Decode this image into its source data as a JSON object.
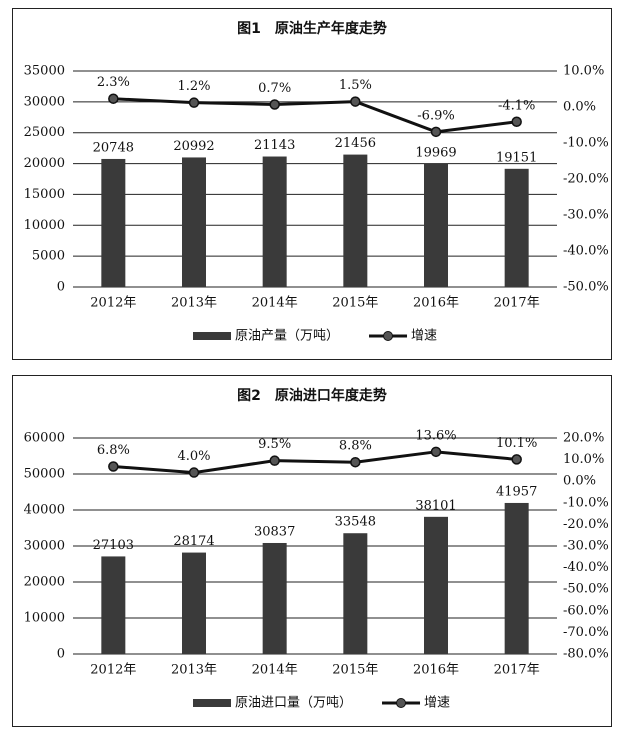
{
  "chart_data": [
    {
      "type": "bar",
      "title": "图1　原油生产年度走势",
      "categories": [
        "2012年",
        "2013年",
        "2014年",
        "2015年",
        "2016年",
        "2017年"
      ],
      "series": [
        {
          "name": "原油产量（万吨）",
          "type": "bar",
          "color": "#3a3a3a",
          "values": [
            20748,
            20992,
            21143,
            21456,
            19969,
            19151
          ]
        },
        {
          "name": "增速",
          "type": "line",
          "axis": "y2",
          "color": "#111111",
          "values": [
            2.3,
            1.2,
            0.7,
            1.5,
            -6.9,
            -4.1
          ],
          "value_labels": [
            "2.3%",
            "1.2%",
            "0.7%",
            "1.5%",
            "-6.9%",
            "-4.1%"
          ]
        }
      ],
      "ylim": [
        0,
        35000
      ],
      "yticks": [
        0,
        5000,
        10000,
        15000,
        20000,
        25000,
        30000,
        35000
      ],
      "y2lim": [
        -50,
        10
      ],
      "y2ticks": [
        {
          "value": -50,
          "label": "-50.0%"
        },
        {
          "value": -40,
          "label": "-40.0%"
        },
        {
          "value": -30,
          "label": "-30.0%"
        },
        {
          "value": -20,
          "label": "-20.0%"
        },
        {
          "value": -10,
          "label": "-10.0%"
        },
        {
          "value": 0,
          "label": "0.0%"
        },
        {
          "value": 10,
          "label": "10.0%"
        }
      ],
      "grid": true,
      "legend": "bottom"
    },
    {
      "type": "bar",
      "title": "图2　原油进口年度走势",
      "categories": [
        "2012年",
        "2013年",
        "2014年",
        "2015年",
        "2016年",
        "2017年"
      ],
      "series": [
        {
          "name": "原油进口量（万吨）",
          "type": "bar",
          "color": "#3a3a3a",
          "values": [
            27103,
            28174,
            30837,
            33548,
            38101,
            41957
          ]
        },
        {
          "name": "增速",
          "type": "line",
          "axis": "y2",
          "color": "#111111",
          "values": [
            6.8,
            4.0,
            9.5,
            8.8,
            13.6,
            10.1
          ],
          "value_labels": [
            "6.8%",
            "4.0%",
            "9.5%",
            "8.8%",
            "13.6%",
            "10.1%"
          ]
        }
      ],
      "ylim": [
        0,
        60000
      ],
      "yticks": [
        0,
        10000,
        20000,
        30000,
        40000,
        50000,
        60000
      ],
      "y2lim": [
        -80,
        20
      ],
      "y2ticks": [
        {
          "value": -80,
          "label": "-80.0%"
        },
        {
          "value": -70,
          "label": "-70.0%"
        },
        {
          "value": -60,
          "label": "-60.0%"
        },
        {
          "value": -50,
          "label": "-50.0%"
        },
        {
          "value": -40,
          "label": "-40.0%"
        },
        {
          "value": -30,
          "label": "-30.0%"
        },
        {
          "value": -20,
          "label": "-20.0%"
        },
        {
          "value": -10,
          "label": "-10.0%"
        },
        {
          "value": 0,
          "label": "0.0%"
        },
        {
          "value": 10,
          "label": "10.0%"
        },
        {
          "value": 20,
          "label": "20.0%"
        }
      ],
      "grid": true,
      "legend": "bottom"
    }
  ]
}
